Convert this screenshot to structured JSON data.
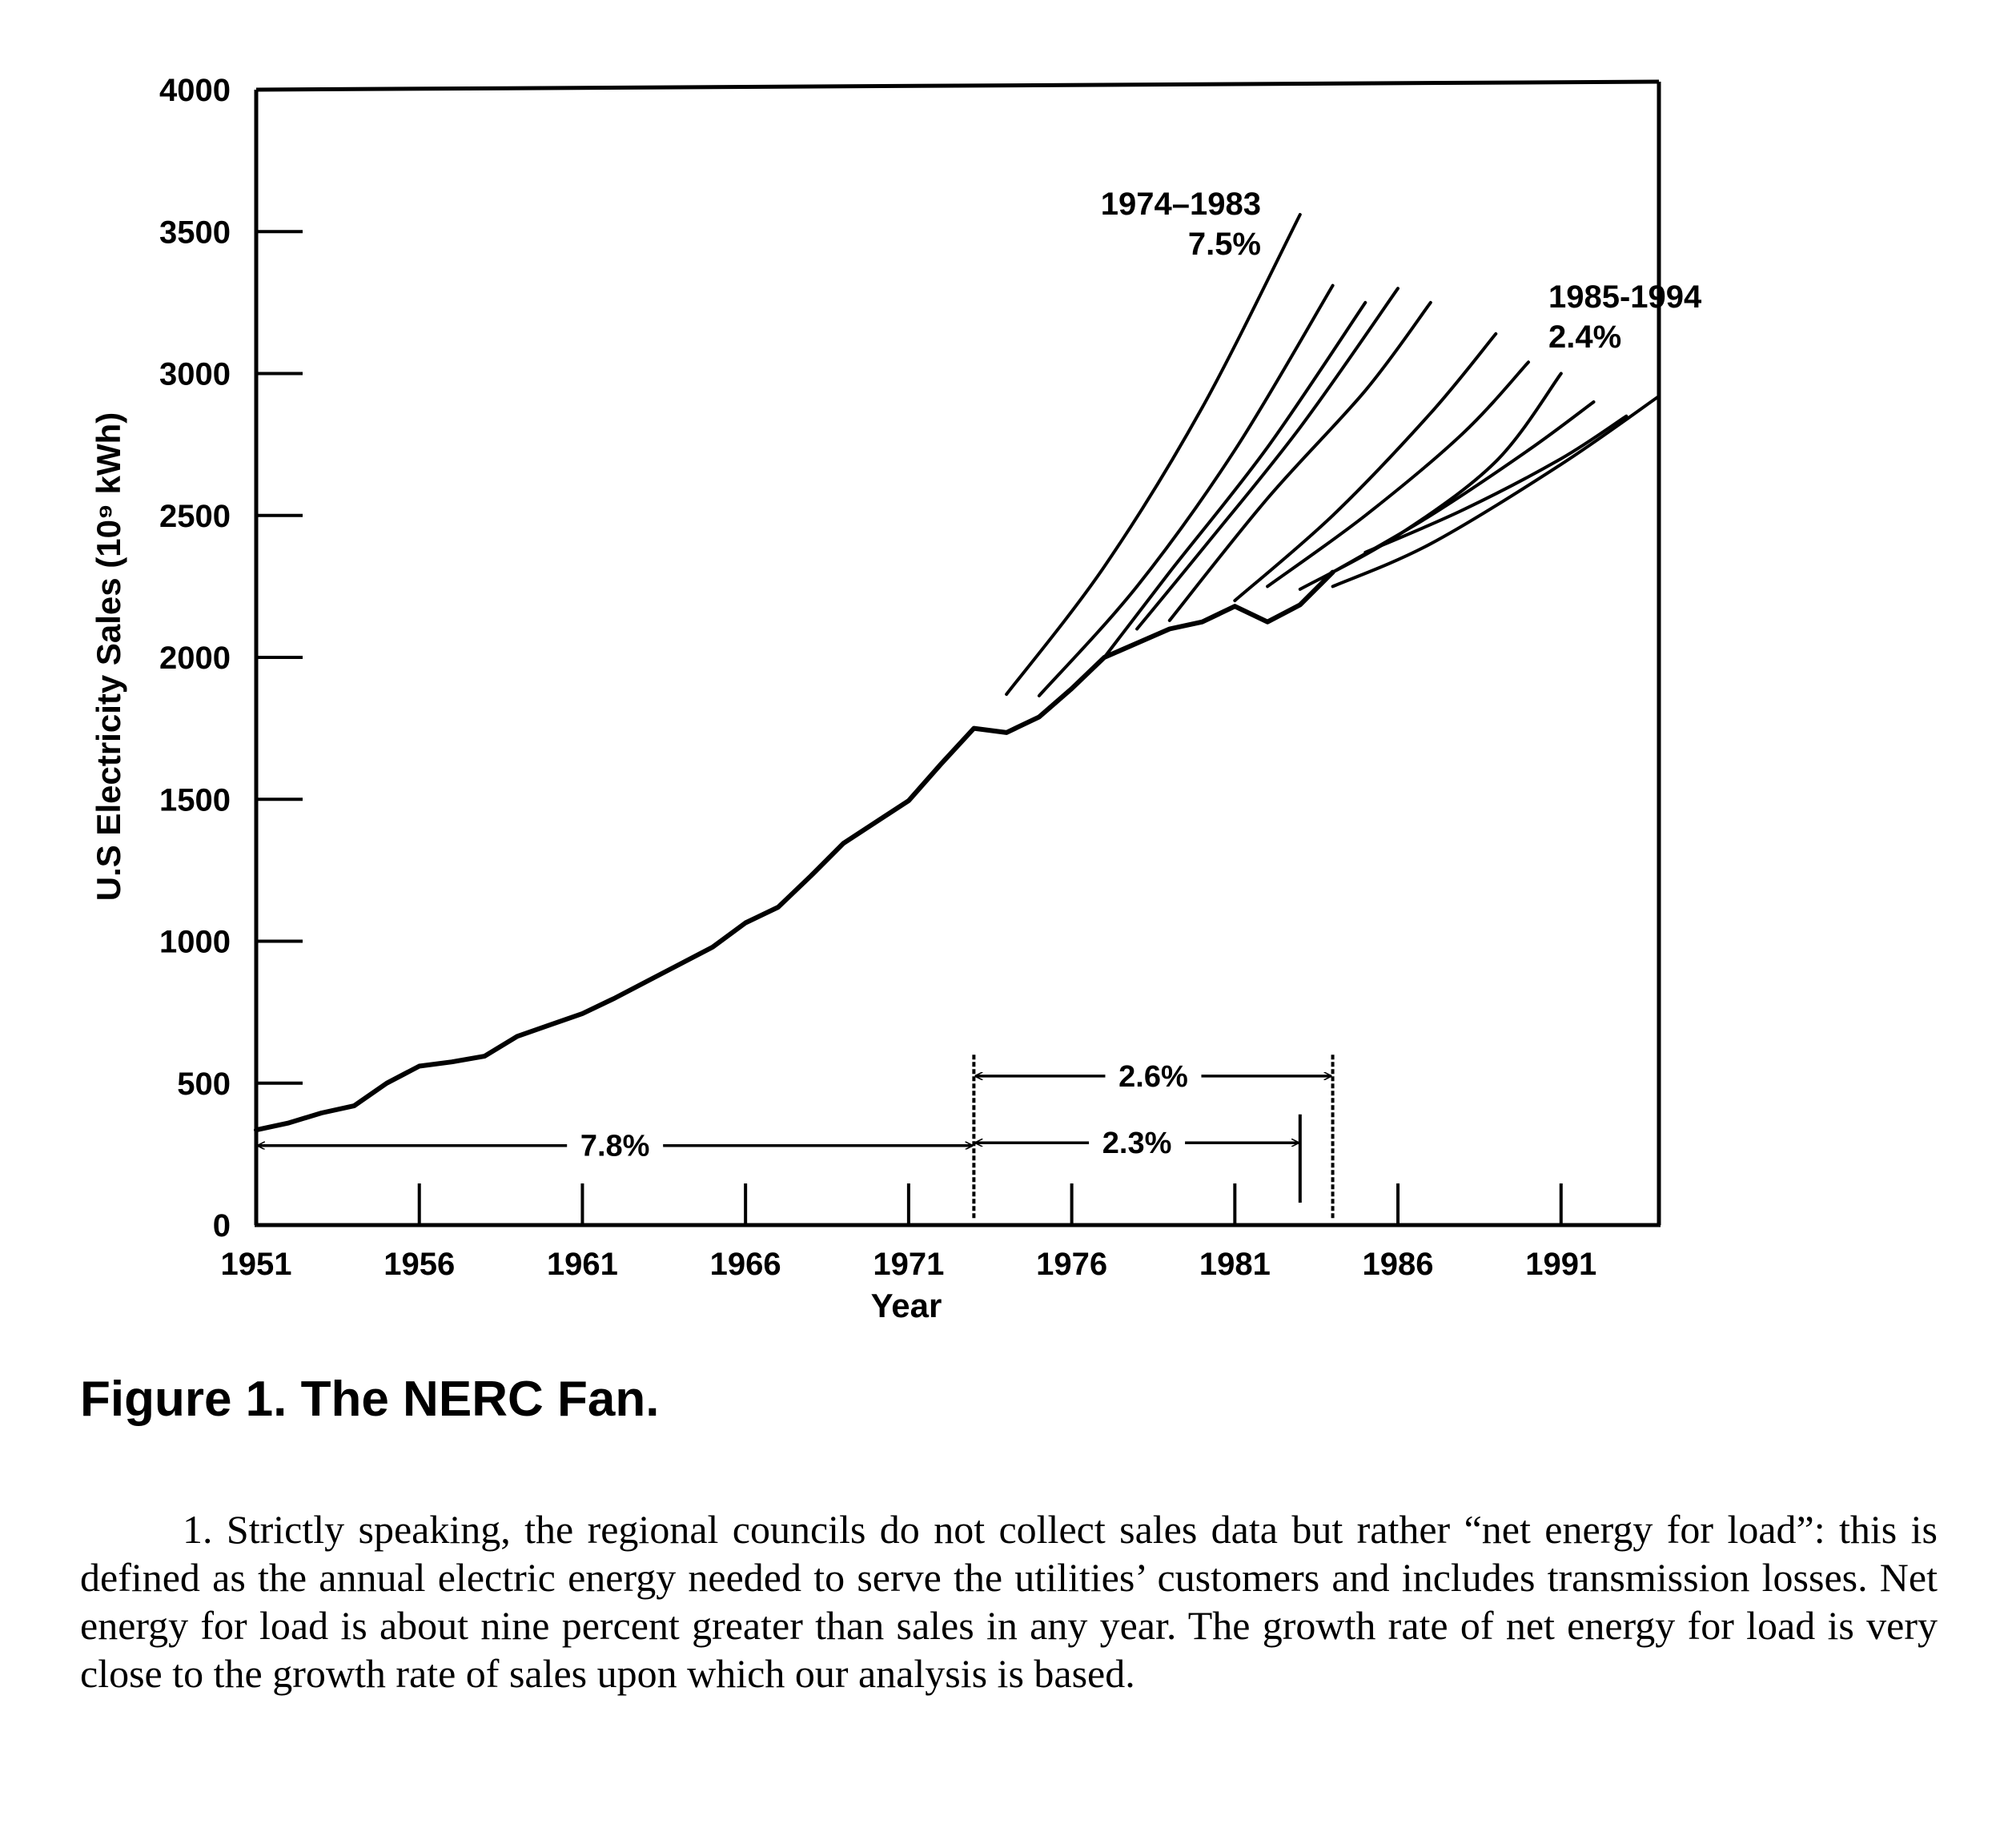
{
  "chart_data": {
    "type": "line",
    "title": "",
    "xlabel": "Year",
    "ylabel": "U.S Electricity Sales (10⁹ kWh)",
    "xlim": [
      1951,
      1994
    ],
    "ylim": [
      0,
      4000
    ],
    "x_ticks": [
      1951,
      1956,
      1961,
      1966,
      1971,
      1976,
      1981,
      1986,
      1991
    ],
    "y_ticks": [
      0,
      500,
      1000,
      1500,
      2000,
      2500,
      3000,
      3500,
      4000
    ],
    "series": [
      {
        "x": [
          1951,
          1952,
          1953,
          1954,
          1955,
          1956,
          1957,
          1958,
          1959,
          1960,
          1961,
          1962,
          1963,
          1964,
          1965,
          1966,
          1967,
          1968,
          1969,
          1970,
          1971,
          1972,
          1973,
          1974,
          1975,
          1976,
          1977,
          1978,
          1979,
          1980,
          1981,
          1982,
          1983,
          1984
        ],
        "y": [
          335,
          360,
          395,
          420,
          500,
          560,
          575,
          595,
          665,
          705,
          745,
          800,
          860,
          920,
          980,
          1065,
          1120,
          1230,
          1345,
          1420,
          1495,
          1625,
          1750,
          1735,
          1790,
          1890,
          2000,
          2050,
          2100,
          2125,
          2180,
          2125,
          2185,
          2300
        ]
      }
    ],
    "forecasts": [
      {
        "x": [
          1974,
          1977,
          1980,
          1983
        ],
        "y": [
          1870,
          2320,
          2880,
          3560
        ]
      },
      {
        "x": [
          1975,
          1978,
          1981,
          1984
        ],
        "y": [
          1865,
          2250,
          2730,
          3310
        ]
      },
      {
        "x": [
          1977,
          1979,
          1982,
          1985
        ],
        "y": [
          2000,
          2300,
          2740,
          3250
        ]
      },
      {
        "x": [
          1978,
          1980,
          1983,
          1986
        ],
        "y": [
          2100,
          2380,
          2810,
          3300
        ]
      },
      {
        "x": [
          1979,
          1982,
          1985,
          1987
        ],
        "y": [
          2130,
          2560,
          2940,
          3250
        ]
      },
      {
        "x": [
          1981,
          1984,
          1987,
          1989
        ],
        "y": [
          2200,
          2500,
          2860,
          3140
        ]
      },
      {
        "x": [
          1982,
          1985,
          1988,
          1990
        ],
        "y": [
          2250,
          2500,
          2790,
          3040
        ]
      },
      {
        "x": [
          1983,
          1986,
          1989,
          1991
        ],
        "y": [
          2240,
          2430,
          2690,
          3000
        ]
      },
      {
        "x": [
          1984,
          1987,
          1990,
          1992
        ],
        "y": [
          2300,
          2500,
          2730,
          2900
        ]
      },
      {
        "x": [
          1985,
          1988,
          1991,
          1993
        ],
        "y": [
          2370,
          2520,
          2700,
          2850
        ]
      },
      {
        "x": [
          1984,
          1987,
          1991,
          1994
        ],
        "y": [
          2250,
          2400,
          2680,
          2920
        ]
      }
    ],
    "annotations": [
      {
        "line1": "1974–1983",
        "line2": "7.5%"
      },
      {
        "line1": "1985-1994",
        "line2": "2.4%"
      }
    ],
    "growth_rates": [
      {
        "label": "7.8%",
        "from": 1951,
        "to": 1973,
        "y": 280
      },
      {
        "label": "2.6%",
        "from": 1973,
        "to": 1984,
        "y": 525
      },
      {
        "label": "2.3%",
        "from": 1973,
        "to": 1983,
        "y": 290
      }
    ]
  },
  "caption": "Figure 1. The NERC Fan.",
  "footnote": "1. Strictly speaking, the regional councils do not collect sales data but rather “net energy for load”: this is defined as the annual electric energy needed to serve the utilities’ customers and includes transmission losses. Net energy for load is about nine percent greater than sales in any year. The growth rate of net energy for load is very close to the growth rate of sales upon which our analysis is based."
}
